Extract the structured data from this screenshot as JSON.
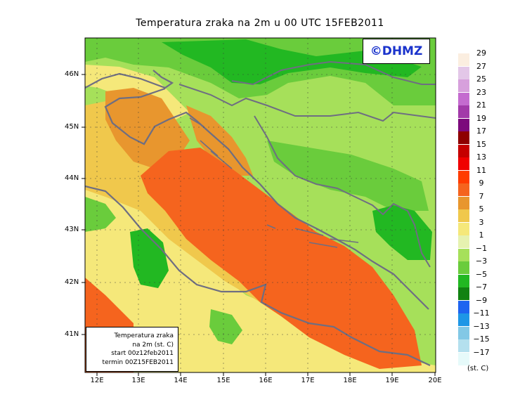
{
  "title": "Temperatura zraka na 2m u 00 UTC 15FEB2011",
  "logo": "©DHMZ",
  "info_box": {
    "line1": "Temperatura zraka",
    "line2": "na 2m (st. C)",
    "line3": "start 00z12feb2011",
    "line4": "termin 00Z15FEB2011"
  },
  "latitude_labels": [
    "46N",
    "45N",
    "44N",
    "43N",
    "42N",
    "41N"
  ],
  "longitude_labels": [
    "12E",
    "13E",
    "14E",
    "15E",
    "16E",
    "17E",
    "18E",
    "19E",
    "20E"
  ],
  "legend": {
    "unit": "(st. C)",
    "labels": [
      "29",
      "27",
      "25",
      "23",
      "21",
      "19",
      "17",
      "15",
      "13",
      "11",
      "9",
      "7",
      "5",
      "3",
      "1",
      "−1",
      "−3",
      "−5",
      "−7",
      "−9",
      "−11",
      "−13",
      "−15",
      "−17"
    ],
    "colors": [
      "#fbeee0",
      "#e3c7e8",
      "#d7a0dc",
      "#c46bcf",
      "#a23aa9",
      "#7c0a7c",
      "#8e0000",
      "#c50000",
      "#f00000",
      "#ff3c00",
      "#f5641e",
      "#e8962e",
      "#f0c84c",
      "#f5e87a",
      "#e6f2b0",
      "#a6e05a",
      "#6acc3c",
      "#22b822",
      "#128212",
      "#1e64f0",
      "#1e96e6",
      "#82c8e6",
      "#b4e0ee",
      "#e6fafa"
    ]
  },
  "map_extent": {
    "lon_min": 11.8,
    "lon_max": 20.0,
    "lat_min": 40.3,
    "lat_max": 46.8
  }
}
